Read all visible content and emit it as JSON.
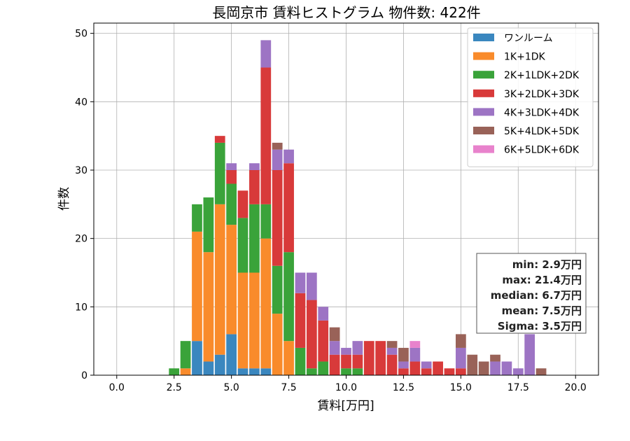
{
  "chart_data": {
    "type": "bar",
    "stacked": true,
    "title": "長岡京市 賃料ヒストグラム  物件数: 422件",
    "xlabel": "賃料[万円]",
    "ylabel": "件数",
    "xlim": [
      -1.0,
      21.0
    ],
    "ylim": [
      0,
      51.5
    ],
    "xticks": [
      0.0,
      2.5,
      5.0,
      7.5,
      10.0,
      12.5,
      15.0,
      17.5,
      20.0
    ],
    "xtick_labels": [
      "0.0",
      "2.5",
      "5.0",
      "7.5",
      "10.0",
      "12.5",
      "15.0",
      "17.5",
      "20.0"
    ],
    "yticks": [
      0,
      10,
      20,
      30,
      40,
      50
    ],
    "ytick_labels": [
      "0",
      "10",
      "20",
      "30",
      "40",
      "50"
    ],
    "grid": true,
    "legend_position": "top-right",
    "bin_width": 0.5,
    "x": [
      2.5,
      3.0,
      3.5,
      4.0,
      4.5,
      5.0,
      5.5,
      6.0,
      6.5,
      7.0,
      7.5,
      8.0,
      8.5,
      9.0,
      9.5,
      10.0,
      10.5,
      11.0,
      11.5,
      12.0,
      12.5,
      13.0,
      13.5,
      14.0,
      14.5,
      15.0,
      15.5,
      16.0,
      16.5,
      17.0,
      17.5,
      18.0,
      18.5
    ],
    "series": [
      {
        "name": "ワンルーム",
        "color": "#3a87bf",
        "values": [
          0,
          0,
          5,
          2,
          3,
          6,
          1,
          1,
          1,
          0,
          0,
          0,
          0,
          0,
          0,
          0,
          0,
          0,
          0,
          0,
          0,
          0,
          0,
          0,
          0,
          0,
          0,
          0,
          0,
          0,
          0,
          0,
          0
        ]
      },
      {
        "name": "1K+1DK",
        "color": "#f98b2b",
        "values": [
          0,
          1,
          16,
          16,
          22,
          16,
          14,
          14,
          19,
          9,
          5,
          0,
          0,
          0,
          0,
          0,
          0,
          0,
          0,
          0,
          0,
          0,
          0,
          0,
          0,
          0,
          0,
          0,
          0,
          0,
          0,
          0,
          0
        ]
      },
      {
        "name": "2K+1LDK+2DK",
        "color": "#3aa33a",
        "values": [
          1,
          4,
          4,
          8,
          9,
          6,
          8,
          10,
          5,
          7,
          13,
          4,
          1,
          2,
          0,
          1,
          1,
          0,
          0,
          0,
          0,
          0,
          0,
          0,
          0,
          0,
          0,
          0,
          0,
          0,
          0,
          0,
          0
        ]
      },
      {
        "name": "3K+2LDK+3DK",
        "color": "#d83a3a",
        "values": [
          0,
          0,
          0,
          0,
          1,
          2,
          4,
          5,
          20,
          14,
          13,
          8,
          10,
          6,
          3,
          2,
          2,
          5,
          5,
          3,
          1,
          2,
          1,
          2,
          1,
          1,
          0,
          0,
          0,
          0,
          0,
          0,
          0
        ]
      },
      {
        "name": "4K+3LDK+4DK",
        "color": "#9d74c4",
        "values": [
          0,
          0,
          0,
          0,
          0,
          1,
          0,
          1,
          4,
          3,
          2,
          3,
          4,
          2,
          2,
          1,
          2,
          0,
          0,
          1,
          1,
          2,
          1,
          0,
          0,
          3,
          0,
          0,
          2,
          2,
          1,
          6,
          0
        ]
      },
      {
        "name": "5K+4LDK+5DK",
        "color": "#996258",
        "values": [
          0,
          0,
          0,
          0,
          0,
          0,
          0,
          0,
          0,
          1,
          0,
          0,
          0,
          0,
          2,
          0,
          0,
          0,
          0,
          1,
          2,
          0,
          0,
          0,
          0,
          2,
          3,
          2,
          1,
          0,
          0,
          0,
          1
        ]
      },
      {
        "name": "6K+5LDK+6DK",
        "color": "#e882cc",
        "values": [
          0,
          0,
          0,
          0,
          0,
          0,
          0,
          0,
          0,
          0,
          0,
          0,
          0,
          0,
          0,
          0,
          0,
          0,
          0,
          0,
          0,
          1,
          0,
          0,
          0,
          0,
          0,
          0,
          0,
          0,
          0,
          0,
          0
        ]
      }
    ],
    "stats": {
      "lines": [
        "min: 2.9万円",
        "max: 21.4万円",
        "median: 6.7万円",
        "mean: 7.5万円",
        "Sigma: 3.5万円"
      ]
    }
  }
}
